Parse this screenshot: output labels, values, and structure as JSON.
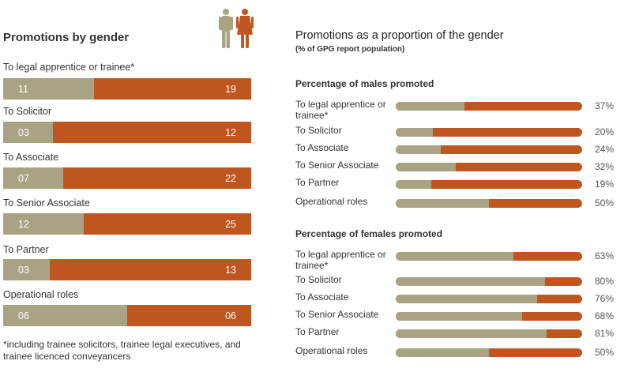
{
  "colors": {
    "male": "#a8a383",
    "female": "#c0561f"
  },
  "icons": [
    "male-figure-icon",
    "female-figure-icon"
  ],
  "chart_data": [
    {
      "type": "bar",
      "stacked": true,
      "orientation": "horizontal",
      "title": "Promotions by gender",
      "categories": [
        "To legal apprentice or trainee*",
        "To Solicitor",
        "To Associate",
        "To Senior Associate",
        "To Partner",
        "Operational roles"
      ],
      "series": [
        {
          "values": [
            11,
            3,
            7,
            12,
            3,
            6
          ],
          "labels": [
            "11",
            "03",
            "07",
            "12",
            "03",
            "06"
          ],
          "color": "#a8a383"
        },
        {
          "values": [
            19,
            12,
            22,
            25,
            13,
            6
          ],
          "labels": [
            "19",
            "12",
            "22",
            "25",
            "13",
            "06"
          ],
          "color": "#c0561f"
        }
      ],
      "footnote": "*including trainee solicitors, trainee legal executives, and trainee licenced conveyancers"
    },
    {
      "type": "bar",
      "orientation": "horizontal",
      "title": "Promotions as a proportion of the gender",
      "subtitle": "(% of GPG report population)",
      "panels": [
        {
          "title": "Percentage of males promoted",
          "categories": [
            "To legal apprentice or trainee*",
            "To Solicitor",
            "To Associate",
            "To Senior Associate",
            "To Partner",
            "Operational roles"
          ],
          "values": [
            37,
            20,
            24,
            32,
            19,
            50
          ],
          "labels": [
            "37%",
            "20%",
            "24%",
            "32%",
            "19%",
            "50%"
          ]
        },
        {
          "title": "Percentage of females promoted",
          "categories": [
            "To legal apprentice or trainee*",
            "To Solicitor",
            "To Associate",
            "To Senior Associate",
            "To Partner",
            "Operational roles"
          ],
          "values": [
            63,
            80,
            76,
            68,
            81,
            50
          ],
          "labels": [
            "63%",
            "80%",
            "76%",
            "68%",
            "81%",
            "50%"
          ]
        }
      ],
      "xlim": [
        0,
        100
      ]
    }
  ]
}
